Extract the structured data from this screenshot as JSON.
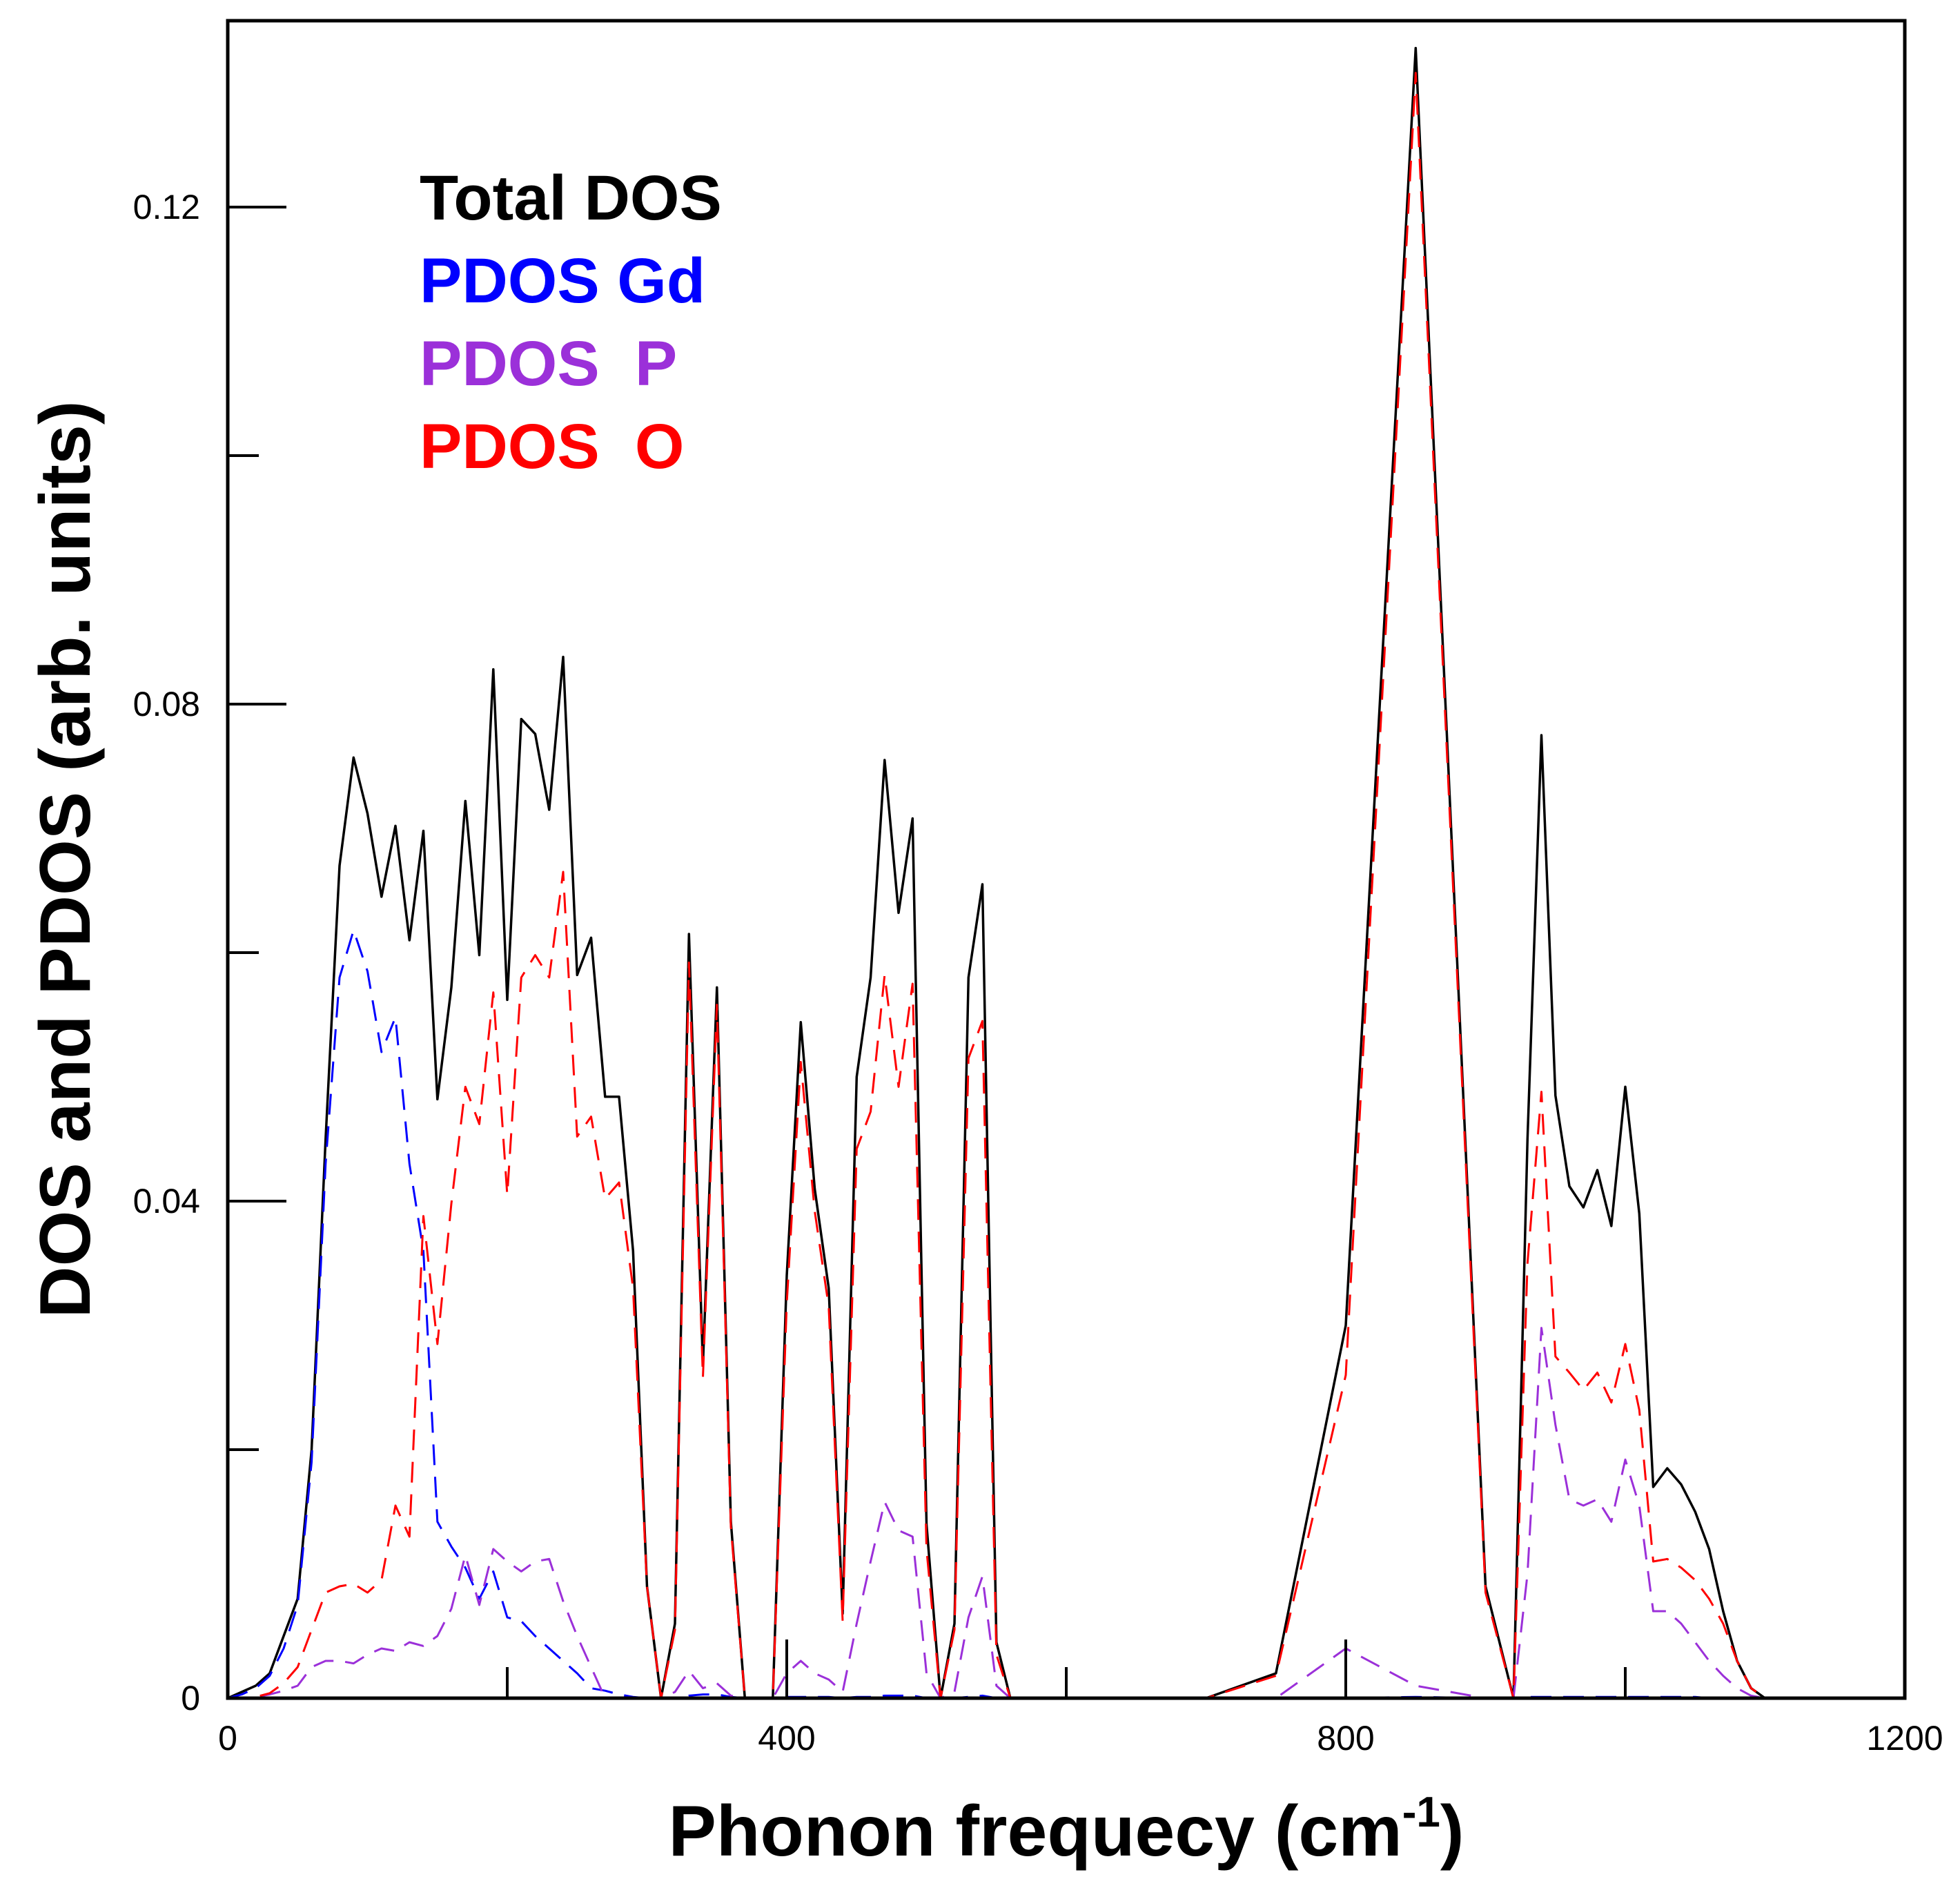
{
  "chart_data": {
    "type": "line",
    "title": "",
    "xlabel": "Phonon frequecy (cm",
    "xlabel_superscript": "-1",
    "xlabel_suffix": ")",
    "ylabel": "DOS and PDOS (arb. units)",
    "xlim": [
      0,
      1200
    ],
    "ylim": [
      0,
      0.135
    ],
    "x_ticks": [
      0,
      400,
      800,
      1200
    ],
    "x_tick_labels": [
      "0",
      "400",
      "800",
      "1200"
    ],
    "x_minor_ticks": [
      200,
      600,
      1000
    ],
    "y_ticks": [
      0,
      0.04,
      0.08,
      0.12
    ],
    "y_tick_labels": [
      "0",
      "0.04",
      "0.08",
      "0.12"
    ],
    "y_minor_ticks": [
      0.02,
      0.06,
      0.1
    ],
    "grid": false,
    "legend_position": "top-left",
    "x": [
      0,
      10,
      20,
      30,
      40,
      50,
      60,
      70,
      80,
      90,
      100,
      110,
      120,
      130,
      140,
      150,
      160,
      170,
      180,
      190,
      200,
      210,
      220,
      230,
      240,
      250,
      260,
      270,
      280,
      290,
      300,
      310,
      320,
      330,
      340,
      350,
      360,
      370,
      380,
      390,
      400,
      410,
      420,
      430,
      440,
      450,
      460,
      470,
      480,
      490,
      500,
      510,
      520,
      530,
      540,
      550,
      560,
      570,
      580,
      590,
      600,
      610,
      620,
      630,
      640,
      650,
      660,
      700,
      750,
      800,
      850,
      900,
      920,
      930,
      940,
      950,
      960,
      970,
      980,
      990,
      1000,
      1010,
      1020,
      1030,
      1040,
      1050,
      1060,
      1070,
      1080,
      1090,
      1100,
      1110,
      1120,
      1130,
      1140,
      1150,
      1160,
      1170,
      1200
    ],
    "series": [
      {
        "name": "Total DOS",
        "color": "#000000",
        "dash": "solid",
        "values": [
          0,
          0.0005,
          0.001,
          0.002,
          0.005,
          0.008,
          0.02,
          0.045,
          0.067,
          0.0757,
          0.0712,
          0.0645,
          0.0702,
          0.061,
          0.0698,
          0.0482,
          0.0572,
          0.0722,
          0.0598,
          0.0828,
          0.0562,
          0.0788,
          0.0776,
          0.0715,
          0.0838,
          0.0582,
          0.0612,
          0.0484,
          0.0484,
          0.036,
          0.009,
          0,
          0.006,
          0.0615,
          0.0268,
          0.0572,
          0.0142,
          0,
          0,
          0,
          0.034,
          0.0544,
          0.041,
          0.033,
          0.0068,
          0.05,
          0.058,
          0.0755,
          0.0632,
          0.0708,
          0.014,
          0,
          0.006,
          0.058,
          0.0655,
          0.0045,
          0,
          0,
          0,
          0,
          0,
          0,
          0,
          0,
          0,
          0,
          0,
          0,
          0.002,
          0.03,
          0.1328,
          0.009,
          0,
          0.045,
          0.0775,
          0.0485,
          0.0412,
          0.0395,
          0.0425,
          0.038,
          0.0492,
          0.039,
          0.017,
          0.0185,
          0.0172,
          0.015,
          0.012,
          0.007,
          0.003,
          0.0008,
          0,
          0,
          0,
          0,
          0,
          0,
          0,
          0,
          0
        ]
      },
      {
        "name": "PDOS Gd",
        "color": "#0000ff",
        "dash": "dashed",
        "values": [
          0,
          0.0003,
          0.0008,
          0.0018,
          0.004,
          0.0075,
          0.019,
          0.043,
          0.058,
          0.0618,
          0.0585,
          0.052,
          0.0548,
          0.043,
          0.036,
          0.0142,
          0.0122,
          0.0105,
          0.008,
          0.0102,
          0.0065,
          0.0062,
          0.005,
          0.004,
          0.003,
          0.002,
          0.0008,
          0.0006,
          0.0003,
          0.0001,
          0,
          0,
          0,
          0.0002,
          0.0003,
          0.0003,
          0.0001,
          0,
          0,
          0,
          0.0001,
          0.0001,
          0.0001,
          0.0001,
          0,
          0.0001,
          0.0001,
          0.0002,
          0.0002,
          0.0002,
          0,
          0,
          0,
          0.0001,
          0.0002,
          0,
          0,
          0,
          0,
          0,
          0,
          0,
          0,
          0,
          0,
          0,
          0,
          0,
          0,
          0,
          0.0001,
          0,
          0,
          0.0001,
          0.0001,
          0.0001,
          0.0001,
          0.0001,
          0.0001,
          0.0001,
          0.0001,
          0.0001,
          0.0001,
          0.0001,
          0.0001,
          0.0001,
          0,
          0,
          0,
          0,
          0,
          0,
          0,
          0,
          0,
          0,
          0,
          0,
          0
        ]
      },
      {
        "name": "PDOS  P",
        "color": "#9b30d9",
        "dash": "dashed",
        "values": [
          0,
          0,
          0.0001,
          0.0003,
          0.0006,
          0.001,
          0.0025,
          0.003,
          0.003,
          0.0028,
          0.0035,
          0.004,
          0.0038,
          0.0045,
          0.0042,
          0.005,
          0.0072,
          0.0115,
          0.0075,
          0.012,
          0.011,
          0.0102,
          0.011,
          0.0112,
          0.0078,
          0.005,
          0.0025,
          0,
          0,
          0,
          0,
          0,
          0.0005,
          0.0022,
          0.0008,
          0.0012,
          0.0002,
          0,
          0,
          0,
          0.002,
          0.003,
          0.002,
          0.0015,
          0.0005,
          0.006,
          0.011,
          0.0158,
          0.0135,
          0.013,
          0.002,
          0,
          0.0005,
          0.0065,
          0.0098,
          0.001,
          0,
          0,
          0,
          0,
          0,
          0,
          0,
          0,
          0,
          0,
          0,
          0,
          0,
          0.004,
          0.001,
          0,
          0,
          0.01,
          0.0298,
          0.022,
          0.016,
          0.0155,
          0.016,
          0.0142,
          0.0192,
          0.0155,
          0.007,
          0.007,
          0.006,
          0.0045,
          0.003,
          0.0018,
          0.0008,
          0.0002,
          0,
          0,
          0,
          0,
          0,
          0,
          0,
          0,
          0
        ]
      },
      {
        "name": "PDOS  O",
        "color": "#ff0000",
        "dash": "dashed",
        "values": [
          0,
          0,
          0.0001,
          0.0004,
          0.0012,
          0.0025,
          0.0055,
          0.0085,
          0.009,
          0.0092,
          0.0085,
          0.0095,
          0.0155,
          0.013,
          0.0388,
          0.0285,
          0.0398,
          0.0492,
          0.0462,
          0.0568,
          0.0405,
          0.058,
          0.0598,
          0.058,
          0.0665,
          0.0452,
          0.0468,
          0.0402,
          0.0415,
          0.033,
          0.009,
          0,
          0.0055,
          0.0592,
          0.0258,
          0.0558,
          0.0138,
          0,
          0,
          0,
          0.0318,
          0.0512,
          0.0392,
          0.0315,
          0.0062,
          0.0442,
          0.0472,
          0.0582,
          0.0492,
          0.0575,
          0.012,
          0,
          0.0055,
          0.0515,
          0.0545,
          0.0035,
          0,
          0,
          0,
          0,
          0,
          0,
          0,
          0,
          0,
          0,
          0,
          0,
          0.0018,
          0.026,
          0.1308,
          0.0085,
          0,
          0.035,
          0.0488,
          0.0275,
          0.0262,
          0.0248,
          0.0262,
          0.0238,
          0.0285,
          0.0232,
          0.011,
          0.0112,
          0.0105,
          0.0095,
          0.008,
          0.006,
          0.003,
          0.0008,
          0,
          0,
          0,
          0,
          0,
          0,
          0,
          0,
          0
        ]
      }
    ],
    "legend": [
      {
        "label": "Total DOS",
        "color": "#000000"
      },
      {
        "label": "PDOS Gd",
        "color": "#0000ff"
      },
      {
        "label": "PDOS  P",
        "color": "#9b30d9"
      },
      {
        "label": "PDOS  O",
        "color": "#ff0000"
      }
    ]
  }
}
